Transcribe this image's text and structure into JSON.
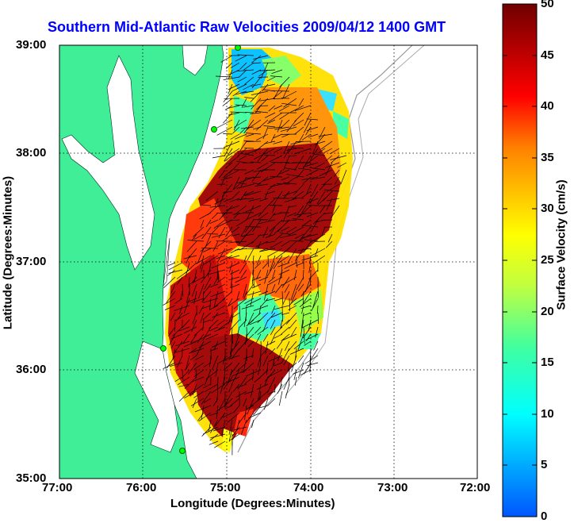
{
  "title": "Southern Mid-Atlantic Raw Velocities 2009/04/12 1400 GMT",
  "axes": {
    "xlabel": "Longitude (Degrees:Minutes)",
    "ylabel": "Latitude (Degrees:Minutes)",
    "xticks": [
      "77:00",
      "76:00",
      "75:00",
      "74:00",
      "73:00",
      "72:00"
    ],
    "yticks": [
      "39:00",
      "38:00",
      "37:00",
      "36:00",
      "35:00"
    ]
  },
  "colorbar": {
    "label": "Surface Velocity (cm/s)",
    "ticks": [
      "50",
      "45",
      "40",
      "35",
      "30",
      "25",
      "20",
      "15",
      "10",
      "5",
      "0"
    ],
    "min": 0,
    "max": 50
  },
  "colors": {
    "land": "#40ee98",
    "water": "#ffffff",
    "title": "#0000ff",
    "grid": "#000000",
    "contour": "#999999"
  }
}
